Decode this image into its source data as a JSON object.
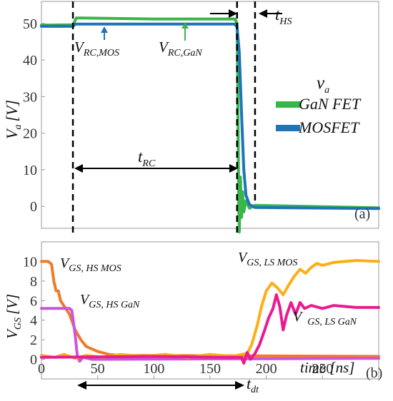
{
  "chart_data": [
    {
      "panel_label": "(a)",
      "type": "line",
      "ylabel": "V",
      "ylabel_sub": "a",
      "ylabel_unit": "[V]",
      "xlim": [
        0,
        300
      ],
      "ylim": [
        -6,
        56
      ],
      "yticks": [
        0,
        10,
        20,
        30,
        40,
        50
      ],
      "grid": false,
      "legend": {
        "title": "v",
        "title_sub": "a",
        "placement": "right-middle"
      },
      "series": [
        {
          "name": "GaN FET",
          "color": "#39b54a",
          "points": [
            [
              0,
              49.5
            ],
            [
              28,
              49.6
            ],
            [
              31,
              51.5
            ],
            [
              100,
              51.2
            ],
            [
              172,
              51.2
            ],
            [
              174,
              50
            ],
            [
              175,
              20
            ],
            [
              175.5,
              0
            ],
            [
              176,
              -7
            ],
            [
              177,
              8
            ],
            [
              178,
              -3
            ],
            [
              179,
              4
            ],
            [
              180,
              -1.5
            ],
            [
              182,
              1.5
            ],
            [
              185,
              -0.5
            ],
            [
              190,
              0.3
            ],
            [
              300,
              -0.4
            ]
          ]
        },
        {
          "name": "MOSFET",
          "color": "#1f73b8",
          "points": [
            [
              0,
              49.2
            ],
            [
              28,
              49.2
            ],
            [
              30,
              49.8
            ],
            [
              172,
              49.8
            ],
            [
              174,
              49
            ],
            [
              176,
              42
            ],
            [
              178,
              25
            ],
            [
              180,
              10
            ],
            [
              182,
              3
            ],
            [
              185,
              0.5
            ],
            [
              190,
              -0.3
            ],
            [
              300,
              -0.6
            ]
          ]
        }
      ],
      "annotations": [
        {
          "main": "V",
          "sub": "RC,MOS",
          "at": [
            50,
            49.8
          ]
        },
        {
          "main": "V",
          "sub": "RC,GaN",
          "at": [
            123,
            51.2
          ]
        },
        {
          "main": "t",
          "sub": "RC",
          "span": [
            28,
            174
          ],
          "y": 5
        },
        {
          "main": "t",
          "sub": "HS",
          "span": [
            174,
            190
          ],
          "y": 51
        }
      ],
      "markers": [
        28,
        174,
        190
      ]
    },
    {
      "panel_label": "(b)",
      "type": "line",
      "ylabel": "V",
      "ylabel_sub": "GS",
      "ylabel_unit": "[V]",
      "xlabel": "time [ns]",
      "xlim": [
        0,
        300
      ],
      "ylim": [
        -2,
        12
      ],
      "xticks": [
        0,
        50,
        100,
        150,
        200,
        250
      ],
      "yticks": [
        0,
        2,
        4,
        6,
        8,
        10
      ],
      "grid": false,
      "series": [
        {
          "name": "V_GS, HS MOS",
          "color": "#f07a28",
          "points": [
            [
              0,
              10
            ],
            [
              6,
              10
            ],
            [
              9,
              9.7
            ],
            [
              11,
              8
            ],
            [
              13,
              7
            ],
            [
              15,
              7
            ],
            [
              17,
              6
            ],
            [
              25,
              4.6
            ],
            [
              30,
              3
            ],
            [
              35,
              2
            ],
            [
              40,
              1.3
            ],
            [
              50,
              0.8
            ],
            [
              60,
              0.5
            ],
            [
              70,
              0.4
            ],
            [
              300,
              0.3
            ]
          ]
        },
        {
          "name": "V_GS, HS GaN",
          "color": "#cc55dd",
          "points": [
            [
              0,
              5.2
            ],
            [
              25,
              5.2
            ],
            [
              27,
              5
            ],
            [
              30,
              2.5
            ],
            [
              32,
              0.3
            ],
            [
              34,
              -0.2
            ],
            [
              37,
              0.2
            ],
            [
              45,
              0
            ],
            [
              300,
              0.1
            ]
          ]
        },
        {
          "name": "V_GS, LS MOS",
          "color": "#fdae17",
          "points": [
            [
              0,
              0.4
            ],
            [
              12,
              0.2
            ],
            [
              20,
              0.5
            ],
            [
              30,
              0.1
            ],
            [
              40,
              0.4
            ],
            [
              55,
              0.2
            ],
            [
              70,
              0.5
            ],
            [
              90,
              0.3
            ],
            [
              110,
              0.5
            ],
            [
              130,
              0.2
            ],
            [
              150,
              0.5
            ],
            [
              170,
              0.3
            ],
            [
              178,
              0.5
            ],
            [
              183,
              0.6
            ],
            [
              187,
              1.5
            ],
            [
              192,
              3.5
            ],
            [
              196,
              5.5
            ],
            [
              200,
              7
            ],
            [
              205,
              7.8
            ],
            [
              210,
              7.3
            ],
            [
              215,
              6.6
            ],
            [
              220,
              7.6
            ],
            [
              225,
              8.5
            ],
            [
              230,
              9.2
            ],
            [
              235,
              8.8
            ],
            [
              240,
              9.4
            ],
            [
              245,
              9.8
            ],
            [
              250,
              9.6
            ],
            [
              260,
              9.9
            ],
            [
              270,
              10
            ],
            [
              280,
              10.1
            ],
            [
              300,
              10
            ]
          ]
        },
        {
          "name": "V_GS, LS GaN",
          "color": "#ea1a8f",
          "points": [
            [
              0,
              0.2
            ],
            [
              100,
              0.3
            ],
            [
              160,
              0.2
            ],
            [
              178,
              0.2
            ],
            [
              180,
              -0.4
            ],
            [
              183,
              0.7
            ],
            [
              186,
              0
            ],
            [
              190,
              0.6
            ],
            [
              194,
              1.5
            ],
            [
              198,
              2.8
            ],
            [
              202,
              4.2
            ],
            [
              206,
              5.2
            ],
            [
              209,
              6.6
            ],
            [
              212,
              5.4
            ],
            [
              215,
              3
            ],
            [
              218,
              4.5
            ],
            [
              222,
              5.8
            ],
            [
              226,
              4.6
            ],
            [
              230,
              5.8
            ],
            [
              234,
              5.2
            ],
            [
              240,
              5.5
            ],
            [
              250,
              5.2
            ],
            [
              260,
              5.5
            ],
            [
              280,
              5.3
            ],
            [
              300,
              5.3
            ]
          ]
        }
      ],
      "annotations": [
        {
          "main": "V",
          "sub": "GS, HS MOS",
          "at": [
            10,
            10
          ]
        },
        {
          "main": "V",
          "sub": "GS, HS GaN",
          "at": [
            30,
            4.8
          ]
        },
        {
          "main": "V",
          "sub": "GS, LS MOS",
          "at": [
            220,
            10
          ]
        },
        {
          "main": "V",
          "sub": "GS, LS GaN",
          "at": [
            250,
            3
          ]
        },
        {
          "main": "t",
          "sub": "dt",
          "span": [
            28,
            178
          ]
        }
      ]
    }
  ]
}
